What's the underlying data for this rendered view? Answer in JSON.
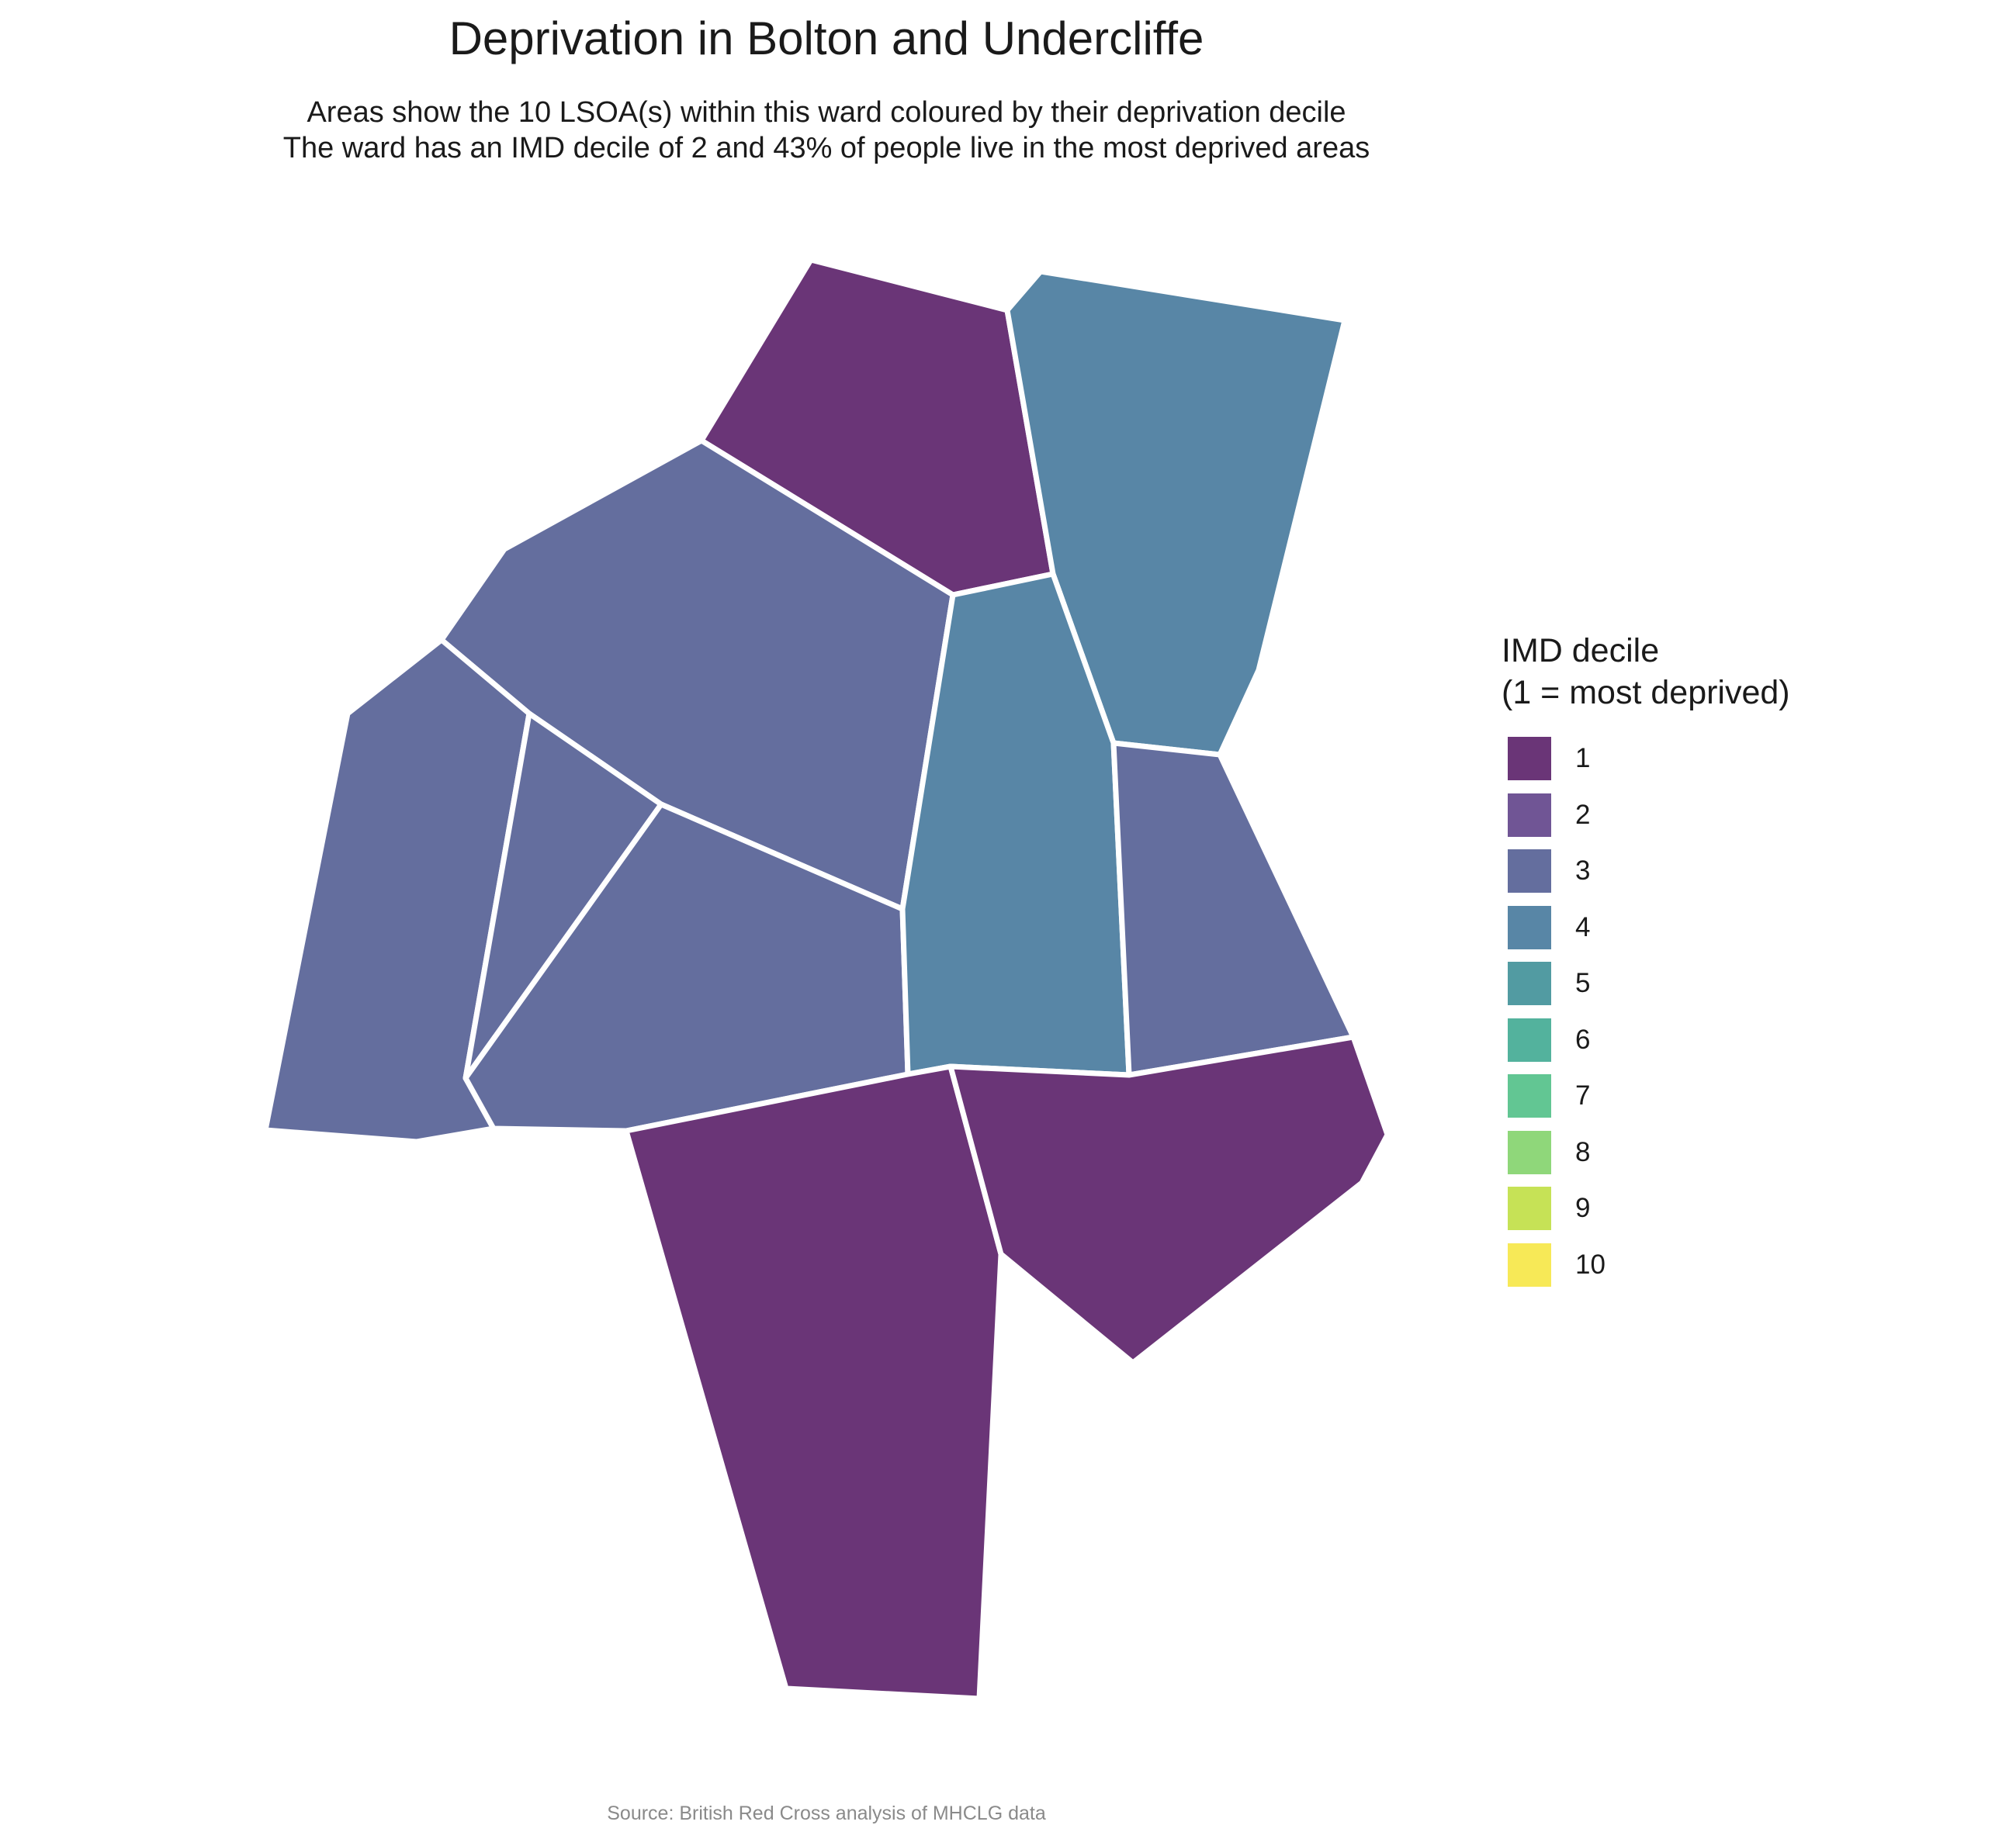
{
  "title": "Deprivation in Bolton and Undercliffe",
  "subtitle_line1": "Areas show the 10 LSOA(s) within this ward coloured by their deprivation decile",
  "subtitle_line2": "The ward has an IMD decile of 2 and 43% of people live in the most deprived areas",
  "legend": {
    "title_line1": "IMD decile",
    "title_line2": "(1 = most deprived)",
    "items": [
      {
        "label": "1",
        "color": "#6a3577"
      },
      {
        "label": "2",
        "color": "#705595"
      },
      {
        "label": "3",
        "color": "#646e9e"
      },
      {
        "label": "4",
        "color": "#5886a6"
      },
      {
        "label": "5",
        "color": "#529ba2"
      },
      {
        "label": "6",
        "color": "#53b29d"
      },
      {
        "label": "7",
        "color": "#62c693"
      },
      {
        "label": "8",
        "color": "#8fd77a"
      },
      {
        "label": "9",
        "color": "#c6e256"
      },
      {
        "label": "10",
        "color": "#f7e957"
      }
    ]
  },
  "map": {
    "areas": [
      {
        "decile": 1
      },
      {
        "decile": 4
      },
      {
        "decile": 3
      },
      {
        "decile": 3
      },
      {
        "decile": 3
      },
      {
        "decile": 3
      },
      {
        "decile": 4
      },
      {
        "decile": 3
      },
      {
        "decile": 1
      },
      {
        "decile": 1
      }
    ]
  },
  "caption": "Source: British Red Cross analysis of MHCLG data"
}
